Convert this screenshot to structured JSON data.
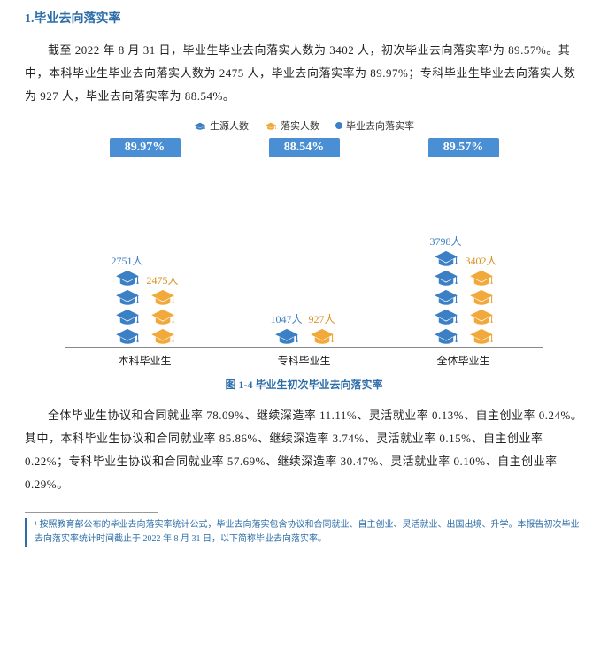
{
  "heading": "1.毕业去向落实率",
  "para1": "截至 2022 年 8 月 31 日，毕业生毕业去向落实人数为 3402 人，初次毕业去向落实率¹为 89.57%。其中，本科毕业生毕业去向落实人数为 2475 人，毕业去向落实率为 89.97%；专科毕业生毕业去向落实人数为 927 人，毕业去向落实率为 88.54%。",
  "legend": {
    "a": "生源人数",
    "b": "落实人数",
    "c": "毕业去向落实率"
  },
  "chart": {
    "colors": {
      "blue": "#3b7fc4",
      "orange": "#f2a93b",
      "pct_bg": "#4a8fd4",
      "label_blue": "#3b7fc4",
      "label_orange": "#d98f1f"
    },
    "groups": [
      {
        "name": "本科毕业生",
        "blue_val": "2751人",
        "blue_caps": 4,
        "orange_val": "2475人",
        "orange_caps": 3,
        "pct": "89.97%"
      },
      {
        "name": "专科毕业生",
        "blue_val": "1047人",
        "blue_caps": 1,
        "orange_val": "927人",
        "orange_caps": 1,
        "pct": "88.54%"
      },
      {
        "name": "全体毕业生",
        "blue_val": "3798人",
        "blue_caps": 5,
        "orange_val": "3402人",
        "orange_caps": 4,
        "pct": "89.57%"
      }
    ]
  },
  "fig_caption": "图 1-4 毕业生初次毕业去向落实率",
  "para2": "全体毕业生协议和合同就业率 78.09%、继续深造率 11.11%、灵活就业率 0.13%、自主创业率 0.24%。其中，本科毕业生协议和合同就业率 85.86%、继续深造率 3.74%、灵活就业率 0.15%、自主创业率 0.22%；专科毕业生协议和合同就业率 57.69%、继续深造率 30.47%、灵活就业率 0.10%、自主创业率 0.29%。",
  "footnote": "¹ 按照教育部公布的毕业去向落实率统计公式，毕业去向落实包含协议和合同就业、自主创业、灵活就业、出国出境、升学。本报告初次毕业去向落实率统计时间截止于 2022 年 8 月 31 日，以下简称毕业去向落实率。"
}
